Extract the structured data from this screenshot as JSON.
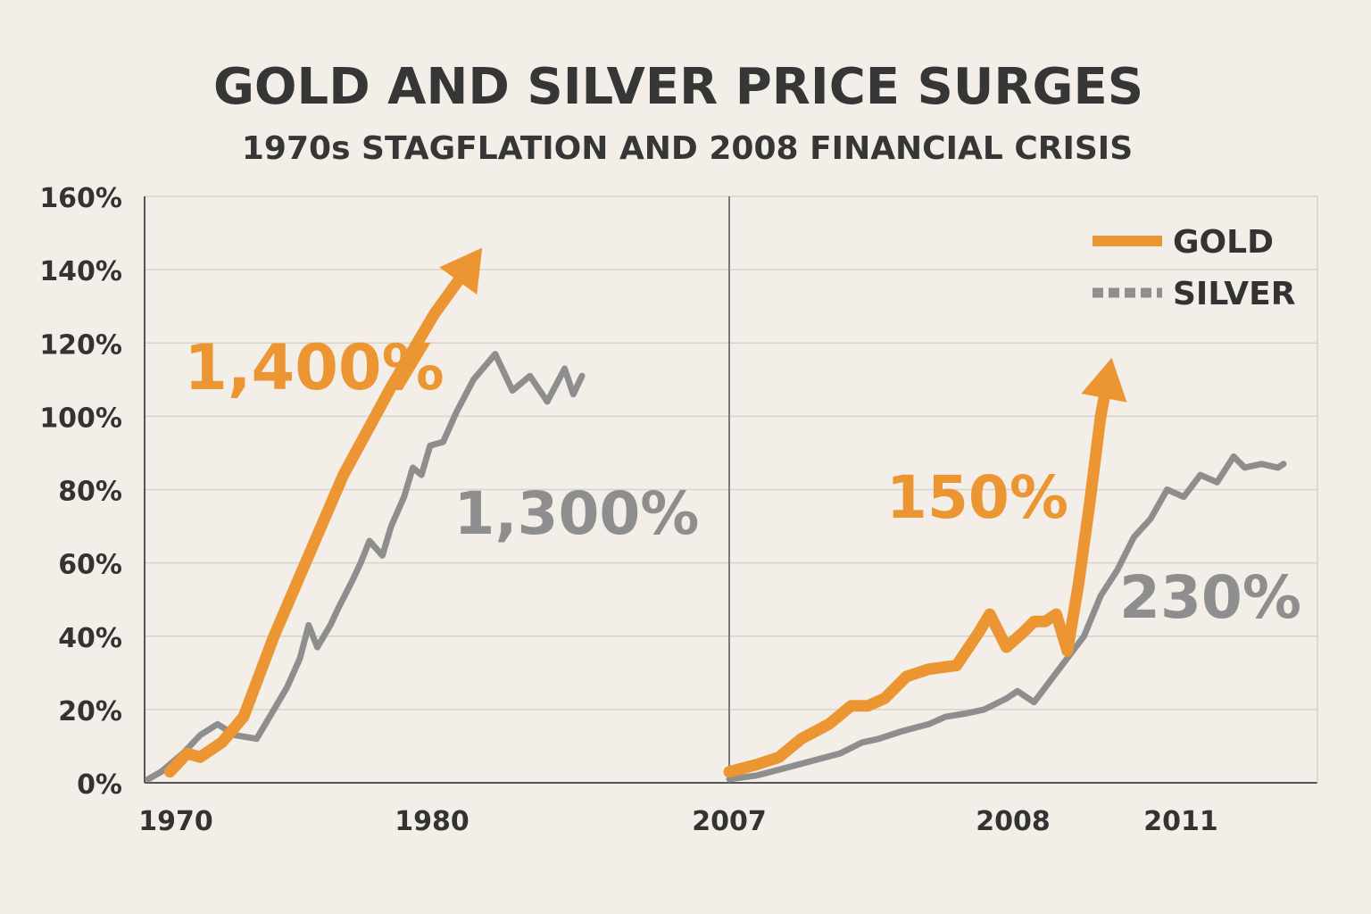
{
  "chart_data": {
    "type": "line",
    "title": "GOLD AND SILVER PRICE SURGES",
    "subtitle": "1970s STAGFLATION AND 2008 FINANCIAL CRISIS",
    "ylim": [
      0,
      160
    ],
    "yticks": [
      "0%",
      "20%",
      "40%",
      "60%",
      "80%",
      "100%",
      "120%",
      "140%",
      "160%"
    ],
    "grid": true,
    "legend_position": "top-right",
    "colors": {
      "gold": "#ec9633",
      "silver": "#8e8e8e",
      "text": "#333333",
      "background": "#f3efe8"
    },
    "legend": [
      {
        "key": "gold",
        "label": "GOLD"
      },
      {
        "key": "silver",
        "label": "SILVER"
      }
    ],
    "panels": [
      {
        "xticks": [
          "1970",
          "1980"
        ],
        "xlim": [
          0,
          1
        ],
        "series": [
          {
            "name": "GOLD",
            "x": [
              0.05,
              0.09,
              0.12,
              0.17,
              0.22,
              0.29,
              0.37,
              0.45,
              0.56,
              0.66,
              0.77
            ],
            "y": [
              3,
              8,
              7,
              11,
              18,
              40,
              62,
              84,
              108,
              128,
              146
            ],
            "arrow": true
          },
          {
            "name": "SILVER",
            "x": [
              0.0,
              0.03,
              0.08,
              0.12,
              0.16,
              0.2,
              0.25,
              0.28,
              0.32,
              0.35,
              0.37,
              0.39,
              0.42,
              0.44,
              0.47,
              0.49,
              0.51,
              0.54,
              0.56,
              0.59,
              0.61,
              0.63,
              0.65,
              0.68,
              0.71,
              0.75,
              0.8,
              0.84,
              0.88,
              0.92,
              0.96,
              0.98,
              1.0
            ],
            "y": [
              1,
              3,
              8,
              13,
              16,
              13,
              12,
              18,
              26,
              34,
              43,
              37,
              43,
              48,
              55,
              60,
              66,
              62,
              70,
              78,
              86,
              84,
              92,
              93,
              101,
              110,
              117,
              107,
              111,
              104,
              113,
              106,
              111
            ],
            "arrow": false
          }
        ],
        "annotations": [
          {
            "text": "1,400%",
            "series": "GOLD"
          },
          {
            "text": "1,300%",
            "series": "SILVER"
          }
        ]
      },
      {
        "xticks": [
          "2007",
          "2008",
          "2011"
        ],
        "xlim": [
          0,
          1
        ],
        "series": [
          {
            "name": "GOLD",
            "x": [
              0.0,
              0.05,
              0.09,
              0.13,
              0.18,
              0.22,
              0.25,
              0.28,
              0.32,
              0.36,
              0.41,
              0.45,
              0.47,
              0.5,
              0.53,
              0.55,
              0.57,
              0.59,
              0.61,
              0.63,
              0.65,
              0.67,
              0.69
            ],
            "y": [
              3,
              5,
              7,
              12,
              16,
              21,
              21,
              23,
              29,
              31,
              32,
              41,
              46,
              37,
              41,
              44,
              44,
              46,
              36,
              54,
              76,
              100,
              116
            ],
            "arrow": true
          },
          {
            "name": "SILVER",
            "x": [
              0.0,
              0.05,
              0.1,
              0.15,
              0.2,
              0.24,
              0.27,
              0.31,
              0.36,
              0.39,
              0.43,
              0.46,
              0.5,
              0.52,
              0.55,
              0.58,
              0.61,
              0.64,
              0.67,
              0.7,
              0.73,
              0.76,
              0.79,
              0.82,
              0.85,
              0.88,
              0.91,
              0.93,
              0.96,
              0.99,
              1.0
            ],
            "y": [
              1,
              2,
              4,
              6,
              8,
              11,
              12,
              14,
              16,
              18,
              19,
              20,
              23,
              25,
              22,
              28,
              34,
              40,
              51,
              58,
              67,
              72,
              80,
              78,
              84,
              82,
              89,
              86,
              87,
              86,
              87
            ],
            "arrow": false
          }
        ],
        "annotations": [
          {
            "text": "150%",
            "series": "GOLD"
          },
          {
            "text": "230%",
            "series": "SILVER"
          }
        ]
      }
    ]
  }
}
